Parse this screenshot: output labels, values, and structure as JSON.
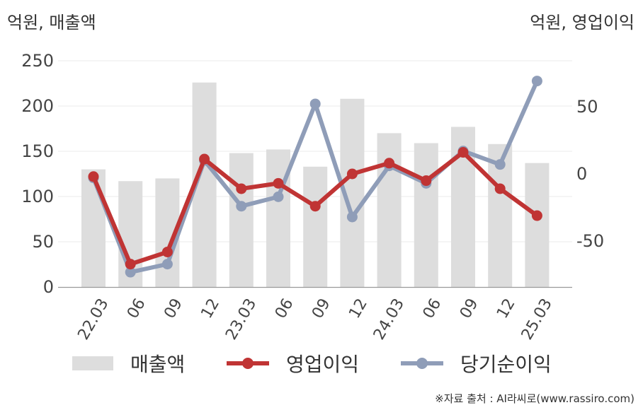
{
  "chart_data": {
    "type": "bar+line",
    "unit_left": "억원, 매출액",
    "unit_right": "억원, 영업이익",
    "categories": [
      "22.03",
      "06",
      "09",
      "12",
      "23.03",
      "06",
      "09",
      "12",
      "24.03",
      "06",
      "09",
      "12",
      "25.03"
    ],
    "left_axis": {
      "range": [
        0,
        250
      ],
      "ticks": [
        0,
        50,
        100,
        150,
        200,
        250
      ]
    },
    "right_axis": {
      "range": [
        -84,
        84
      ],
      "ticks": [
        -50,
        0,
        50
      ]
    },
    "series": [
      {
        "name": "매출액",
        "kind": "bar",
        "axis": "left",
        "color": "#dddddd",
        "values": [
          130,
          117,
          120,
          226,
          148,
          152,
          133,
          208,
          170,
          159,
          177,
          158,
          137
        ]
      },
      {
        "name": "영업이익",
        "kind": "line",
        "axis": "right",
        "color": "#c03434",
        "values": [
          -2,
          -67,
          -58,
          11,
          -11,
          -7,
          -24,
          0,
          8,
          -5,
          16,
          -11,
          -31
        ]
      },
      {
        "name": "당기순이익",
        "kind": "line",
        "axis": "right",
        "color": "#8f9db8",
        "values": [
          -3,
          -73,
          -67,
          10,
          -24,
          -17,
          52,
          -32,
          6,
          -7,
          17,
          7,
          69
        ]
      }
    ],
    "grid": true,
    "legend": "bottom"
  },
  "source": "※자료 출처 : AI라씨로(www.rassiro.com)"
}
